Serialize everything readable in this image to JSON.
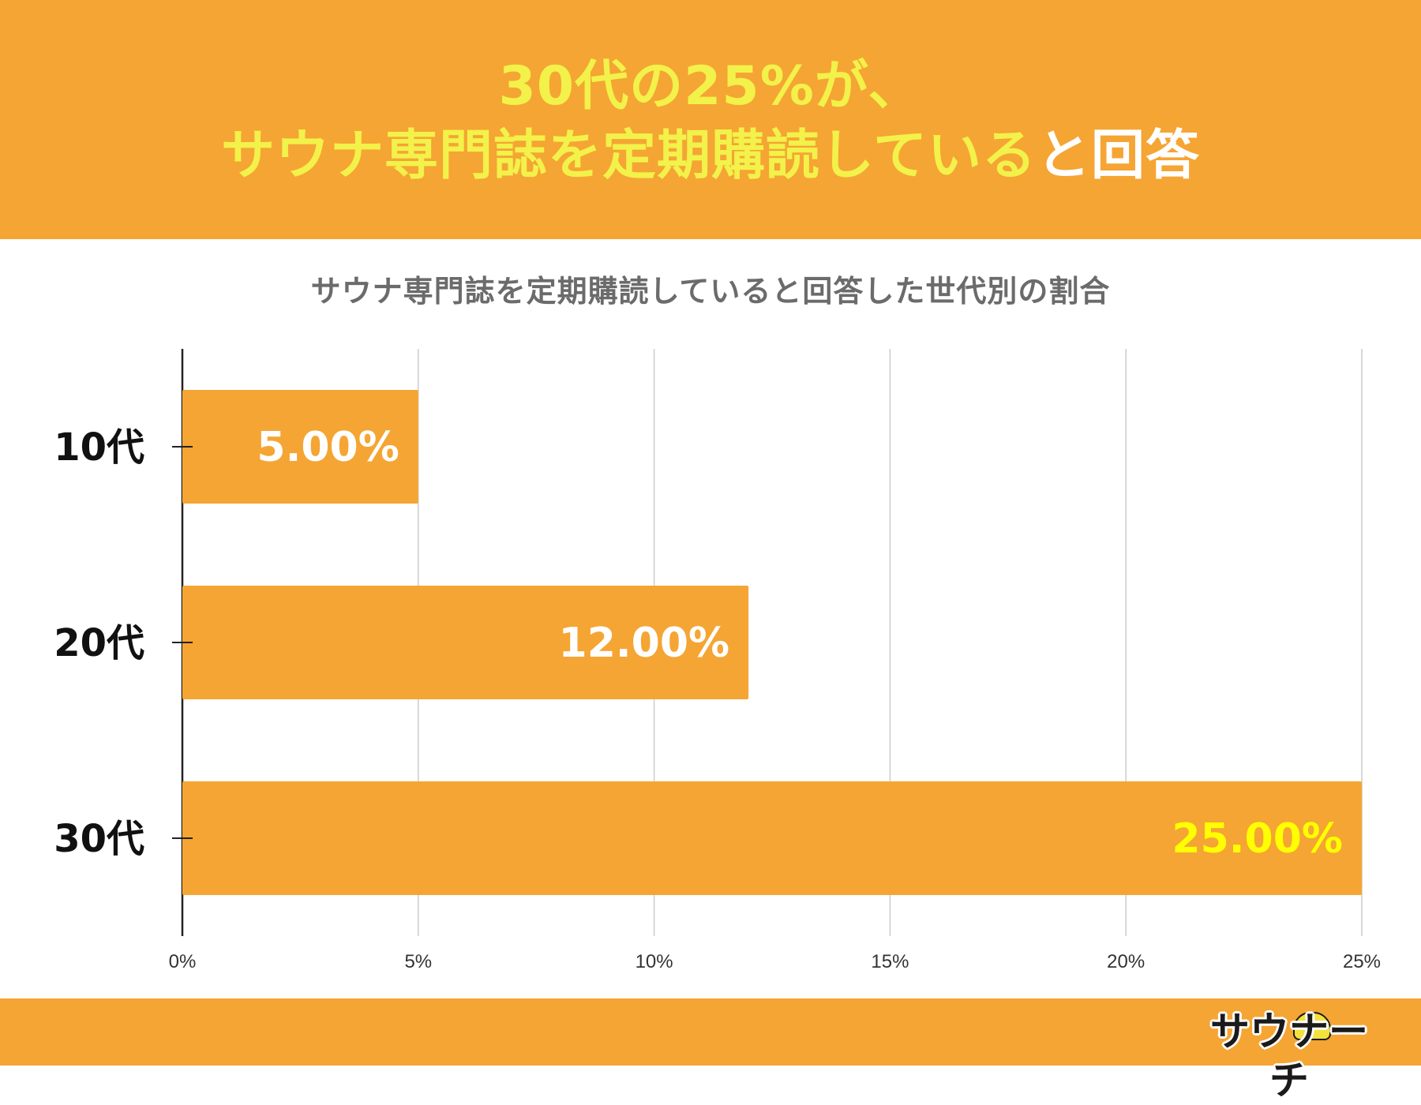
{
  "headline": {
    "line1": "30代の25%が、",
    "line2_highlight": "サウナ専門誌を定期購読している",
    "line2_rest": "と回答"
  },
  "chart_data": {
    "type": "bar",
    "orientation": "horizontal",
    "title": "サウナ専門誌を定期購読していると回答した世代別の割合",
    "categories": [
      "10代",
      "20代",
      "30代"
    ],
    "values": [
      5,
      12,
      25
    ],
    "value_labels": [
      "5.00%",
      "12.00%",
      "25.00%"
    ],
    "xlim": [
      0,
      25
    ],
    "x_ticks": [
      "0%",
      "5%",
      "10%",
      "15%",
      "20%",
      "25%"
    ],
    "grid": true,
    "xlabel": "",
    "ylabel": ""
  },
  "colors": {
    "accent": "#f5a533",
    "headline_yellow": "#f2f24a",
    "label_white": "#ffffff",
    "label_highlight": "#ffff00",
    "title_gray": "#6b6b6b",
    "grid": "#cccccc"
  },
  "logo": {
    "text": "サウナーチ",
    "mascot": "sauna-hat-mascot-icon"
  }
}
